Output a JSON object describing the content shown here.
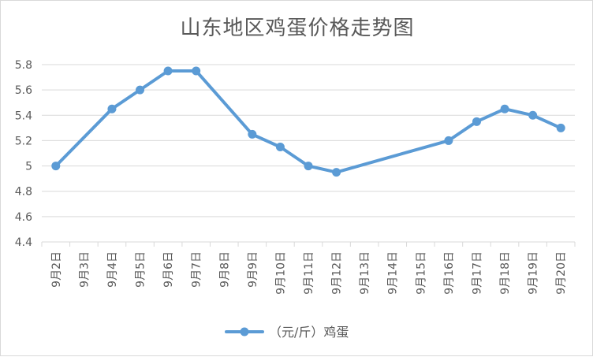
{
  "chart_data": {
    "type": "line",
    "title": "山东地区鸡蛋价格走势图",
    "categories": [
      "9月2日",
      "9月3日",
      "9月4日",
      "9月5日",
      "9月6日",
      "9月7日",
      "9月8日",
      "9月9日",
      "9月10日",
      "9月11日",
      "9月12日",
      "9月13日",
      "9月14日",
      "9月15日",
      "9月16日",
      "9月17日",
      "9月18日",
      "9月19日",
      "9月20日"
    ],
    "series": [
      {
        "name": "（元/斤）鸡蛋",
        "values": [
          5.0,
          null,
          5.45,
          5.6,
          5.75,
          5.75,
          null,
          5.25,
          5.15,
          5.0,
          4.95,
          null,
          null,
          null,
          5.2,
          5.35,
          5.45,
          5.4,
          5.3
        ]
      }
    ],
    "ylim": [
      4.4,
      5.8
    ],
    "yticks": [
      "4.4",
      "4.6",
      "4.8",
      "5",
      "5.2",
      "5.4",
      "5.6",
      "5.8"
    ],
    "grid": true,
    "legend_position": "bottom",
    "colors": {
      "series": "#5b9bd5",
      "grid": "#d9d9d9",
      "text": "#595959"
    }
  }
}
